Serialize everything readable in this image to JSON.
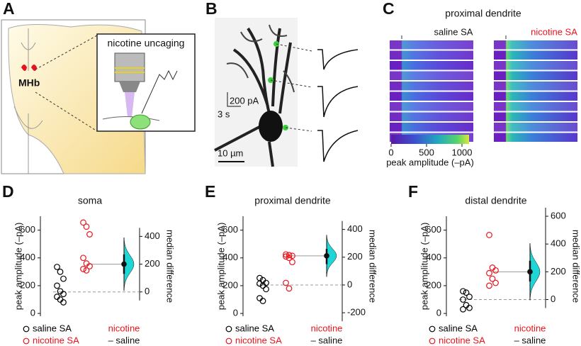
{
  "panel_A": {
    "letter": "A",
    "inset_title": "nicotine uncaging",
    "region": "MHb"
  },
  "panel_B": {
    "letter": "B",
    "current_scale": "200 pA",
    "time_scale": "3 s",
    "length_scale": "10 µm"
  },
  "panel_C": {
    "letter": "C",
    "title": "proximal dendrite",
    "groups": [
      "saline SA",
      "nicotine SA"
    ],
    "colorbar": {
      "lim": [
        0,
        1100
      ],
      "ticks": [
        0,
        500,
        1000
      ],
      "label": "peak amplitude (–pA)"
    }
  },
  "chart_data": [
    {
      "letter": "D",
      "type": "estimation",
      "title": "soma",
      "ylabel": "peak amplitude (–pA)",
      "y2label": "median difference",
      "ylim": [
        -20,
        700
      ],
      "yticks": [
        0,
        200,
        400,
        600
      ],
      "y2lim": [
        -175,
        545
      ],
      "y2ticks": [
        0,
        200,
        400
      ],
      "series": [
        {
          "name": "saline SA",
          "color": "#000000",
          "values": [
            335,
            300,
            250,
            200,
            160,
            140,
            120,
            100,
            80
          ]
        },
        {
          "name": "nicotine SA",
          "color": "#e8141c",
          "values": [
            655,
            625,
            570,
            400,
            360,
            340,
            320,
            310
          ]
        }
      ],
      "difference": {
        "name": [
          "nicotine",
          "– saline"
        ],
        "color": "#1fd6d6",
        "value": 200,
        "ci": [
          130,
          270
        ],
        "axis": "y2"
      }
    },
    {
      "letter": "E",
      "type": "estimation",
      "title": "proximal dendrite",
      "ylabel": "peak amplitude (–pA)",
      "y2label": "median difference",
      "ylim": [
        -20,
        700
      ],
      "yticks": [
        0,
        200,
        400,
        600
      ],
      "y2lim": [
        -225,
        495
      ],
      "y2ticks": [
        -200,
        0,
        200,
        400
      ],
      "series": [
        {
          "name": "saline SA",
          "color": "#000000",
          "values": [
            255,
            240,
            220,
            215,
            200,
            175,
            110,
            90
          ]
        },
        {
          "name": "nicotine SA",
          "color": "#e8141c",
          "values": [
            425,
            420,
            415,
            410,
            400,
            370,
            220,
            180
          ]
        }
      ],
      "difference": {
        "name": [
          "nicotine",
          "– saline"
        ],
        "color": "#1fd6d6",
        "value": 210,
        "ci": [
          150,
          260
        ],
        "axis": "y2"
      }
    },
    {
      "letter": "F",
      "type": "estimation",
      "title": "distal dendrite",
      "ylabel": "peak amplitude (–pA)",
      "y2label": "median difference",
      "ylim": [
        -20,
        700
      ],
      "yticks": [
        0,
        200,
        400,
        600
      ],
      "y2lim": [
        -120,
        600
      ],
      "y2ticks": [
        0,
        200,
        400,
        600
      ],
      "series": [
        {
          "name": "saline SA",
          "color": "#000000",
          "values": [
            160,
            150,
            120,
            100,
            60,
            40,
            30
          ]
        },
        {
          "name": "nicotine SA",
          "color": "#e8141c",
          "values": [
            565,
            330,
            310,
            290,
            250,
            220,
            200
          ]
        }
      ],
      "difference": {
        "name": [
          "nicotine",
          "– saline"
        ],
        "color": "#1fd6d6",
        "value": 200,
        "ci": [
          130,
          280
        ],
        "axis": "y2"
      }
    }
  ]
}
